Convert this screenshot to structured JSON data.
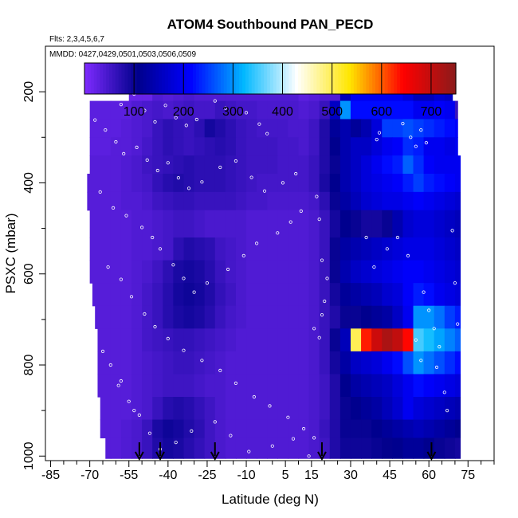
{
  "chart_data": {
    "type": "heatmap",
    "title": "ATOM4 Southbound PAN_PECD",
    "flights_note": "Flts: 2,3,4,5,6,7",
    "dates_note": "MMDD: 0427,0429,0501,0503,0506,0509",
    "xlabel": "Latitude (deg N)",
    "ylabel": "PSXC (mbar)",
    "xlim": [
      -87,
      85
    ],
    "ylim": [
      1010,
      100
    ],
    "x_ticks": [
      -85,
      -70,
      -55,
      -40,
      -25,
      -10,
      5,
      15,
      30,
      45,
      60,
      75
    ],
    "y_ticks": [
      200,
      400,
      600,
      800,
      1000
    ],
    "colorbar": {
      "range": [
        0,
        750
      ],
      "ticks": [
        100,
        200,
        300,
        400,
        500,
        600,
        700
      ],
      "colors": [
        "#7f2bff",
        "#00008b",
        "#0000ff",
        "#00b8ff",
        "#ffffff",
        "#ffe600",
        "#ff0000",
        "#8b1a1a"
      ]
    },
    "lat_columns": [
      -64,
      -60,
      -56,
      -52,
      -48,
      -44,
      -40,
      -36,
      -32,
      -28,
      -24,
      -20,
      -16,
      -12,
      -8,
      -4,
      0,
      4,
      8,
      12,
      16,
      20,
      24,
      28,
      32,
      36,
      40,
      44,
      48,
      52,
      56,
      60,
      64,
      68,
      72
    ],
    "layers": [
      {
        "p_top": 175,
        "p_bot": 220,
        "lat_min": -55,
        "lat_max": 69,
        "values": [
          0,
          0,
          20,
          20,
          20,
          40,
          35,
          40,
          45,
          40,
          40,
          40,
          40,
          40,
          40,
          40,
          40,
          40,
          40,
          30,
          35,
          40,
          40,
          150,
          200,
          200,
          200,
          200,
          200,
          180,
          150,
          150,
          170,
          160,
          0
        ]
      },
      {
        "p_top": 220,
        "p_bot": 260,
        "lat_min": -70,
        "lat_max": 71,
        "values": [
          30,
          30,
          30,
          40,
          45,
          50,
          45,
          50,
          55,
          50,
          50,
          60,
          55,
          50,
          50,
          45,
          45,
          45,
          45,
          40,
          45,
          60,
          160,
          300,
          220,
          220,
          220,
          220,
          220,
          220,
          200,
          200,
          210,
          200,
          60
        ]
      },
      {
        "p_top": 260,
        "p_bot": 300,
        "lat_min": -70,
        "lat_max": 71,
        "values": [
          30,
          30,
          35,
          40,
          45,
          60,
          70,
          65,
          60,
          70,
          90,
          80,
          70,
          60,
          55,
          50,
          50,
          50,
          45,
          45,
          55,
          80,
          120,
          140,
          120,
          140,
          180,
          250,
          250,
          260,
          250,
          240,
          230,
          220,
          210
        ]
      },
      {
        "p_top": 300,
        "p_bot": 340,
        "lat_min": -70,
        "lat_max": 71,
        "values": [
          30,
          35,
          35,
          40,
          50,
          60,
          70,
          65,
          60,
          65,
          70,
          75,
          70,
          60,
          55,
          55,
          55,
          50,
          50,
          45,
          55,
          80,
          110,
          140,
          160,
          160,
          180,
          200,
          210,
          240,
          230,
          200,
          200,
          190,
          200
        ]
      },
      {
        "p_top": 340,
        "p_bot": 380,
        "lat_min": -70,
        "lat_max": 72,
        "values": [
          35,
          35,
          40,
          45,
          55,
          60,
          65,
          70,
          75,
          70,
          70,
          70,
          65,
          60,
          55,
          55,
          55,
          50,
          50,
          50,
          60,
          80,
          100,
          140,
          160,
          180,
          200,
          220,
          230,
          270,
          240,
          210,
          200,
          200,
          200
        ]
      },
      {
        "p_top": 380,
        "p_bot": 420,
        "lat_min": -71,
        "lat_max": 72,
        "values": [
          35,
          35,
          40,
          45,
          50,
          65,
          75,
          80,
          75,
          70,
          70,
          70,
          65,
          60,
          55,
          50,
          50,
          50,
          50,
          50,
          60,
          85,
          110,
          140,
          160,
          180,
          190,
          200,
          210,
          230,
          250,
          230,
          220,
          210,
          200
        ]
      },
      {
        "p_top": 420,
        "p_bot": 460,
        "lat_min": -71,
        "lat_max": 72,
        "values": [
          35,
          35,
          40,
          40,
          45,
          55,
          60,
          65,
          65,
          60,
          60,
          60,
          60,
          55,
          50,
          50,
          45,
          45,
          45,
          45,
          50,
          70,
          100,
          130,
          150,
          170,
          180,
          190,
          190,
          200,
          210,
          200,
          190,
          180,
          170
        ]
      },
      {
        "p_top": 460,
        "p_bot": 520,
        "lat_min": -70,
        "lat_max": 72,
        "values": [
          35,
          35,
          35,
          40,
          40,
          45,
          50,
          55,
          55,
          50,
          45,
          45,
          45,
          45,
          40,
          40,
          40,
          40,
          40,
          40,
          45,
          60,
          90,
          110,
          100,
          90,
          90,
          100,
          140,
          170,
          180,
          180,
          170,
          160,
          150
        ]
      },
      {
        "p_top": 520,
        "p_bot": 570,
        "lat_min": -70,
        "lat_max": 72,
        "values": [
          35,
          35,
          35,
          40,
          40,
          45,
          50,
          70,
          80,
          75,
          70,
          55,
          50,
          45,
          40,
          40,
          40,
          40,
          40,
          40,
          45,
          60,
          100,
          130,
          140,
          150,
          160,
          170,
          180,
          190,
          190,
          190,
          180,
          170,
          160
        ]
      },
      {
        "p_top": 570,
        "p_bot": 620,
        "lat_min": -70,
        "lat_max": 72,
        "values": [
          35,
          35,
          35,
          40,
          45,
          55,
          70,
          85,
          90,
          85,
          75,
          60,
          50,
          45,
          40,
          40,
          40,
          40,
          40,
          40,
          45,
          60,
          100,
          140,
          160,
          170,
          180,
          190,
          200,
          210,
          210,
          200,
          190,
          180,
          170
        ]
      },
      {
        "p_top": 620,
        "p_bot": 670,
        "lat_min": -69,
        "lat_max": 72,
        "values": [
          35,
          35,
          35,
          40,
          50,
          60,
          75,
          90,
          95,
          90,
          80,
          65,
          55,
          45,
          40,
          40,
          40,
          40,
          40,
          40,
          45,
          60,
          90,
          120,
          130,
          140,
          150,
          170,
          180,
          210,
          230,
          220,
          200,
          190,
          180
        ]
      },
      {
        "p_top": 670,
        "p_bot": 720,
        "lat_min": -68,
        "lat_max": 72,
        "values": [
          35,
          35,
          35,
          40,
          50,
          60,
          75,
          85,
          90,
          85,
          75,
          60,
          50,
          45,
          40,
          40,
          40,
          40,
          40,
          40,
          45,
          60,
          80,
          100,
          100,
          110,
          120,
          130,
          160,
          200,
          300,
          300,
          280,
          250,
          230
        ]
      },
      {
        "p_top": 720,
        "p_bot": 770,
        "lat_min": -67,
        "lat_max": 72,
        "values": [
          35,
          35,
          35,
          40,
          50,
          55,
          60,
          65,
          65,
          60,
          55,
          50,
          45,
          40,
          40,
          40,
          40,
          40,
          40,
          40,
          45,
          60,
          100,
          150,
          500,
          630,
          690,
          720,
          700,
          640,
          350,
          330,
          310,
          290,
          270
        ]
      },
      {
        "p_top": 770,
        "p_bot": 820,
        "lat_min": -67,
        "lat_max": 72,
        "values": [
          35,
          35,
          35,
          40,
          45,
          50,
          55,
          60,
          60,
          55,
          50,
          45,
          40,
          40,
          40,
          40,
          40,
          40,
          40,
          40,
          45,
          60,
          90,
          130,
          160,
          170,
          180,
          200,
          220,
          260,
          300,
          280,
          260,
          240,
          220
        ]
      },
      {
        "p_top": 820,
        "p_bot": 870,
        "lat_min": -67,
        "lat_max": 72,
        "values": [
          35,
          35,
          35,
          40,
          45,
          50,
          55,
          55,
          55,
          50,
          45,
          45,
          40,
          40,
          40,
          40,
          40,
          40,
          40,
          40,
          45,
          55,
          80,
          110,
          130,
          140,
          150,
          160,
          180,
          200,
          220,
          210,
          200,
          190,
          180
        ]
      },
      {
        "p_top": 870,
        "p_bot": 920,
        "lat_min": -66,
        "lat_max": 72,
        "values": [
          35,
          35,
          35,
          40,
          45,
          60,
          75,
          80,
          75,
          65,
          55,
          45,
          40,
          40,
          40,
          40,
          40,
          40,
          40,
          40,
          45,
          55,
          80,
          100,
          110,
          120,
          130,
          150,
          170,
          200,
          180,
          170,
          160,
          150,
          140
        ]
      },
      {
        "p_top": 920,
        "p_bot": 960,
        "lat_min": -66,
        "lat_max": 72,
        "values": [
          35,
          35,
          40,
          45,
          60,
          85,
          95,
          90,
          80,
          70,
          55,
          45,
          40,
          40,
          40,
          40,
          40,
          40,
          40,
          40,
          45,
          60,
          80,
          100,
          100,
          100,
          110,
          120,
          130,
          140,
          150,
          140,
          130,
          120,
          110
        ]
      },
      {
        "p_top": 960,
        "p_bot": 1005,
        "lat_min": -64,
        "lat_max": 72,
        "values": [
          35,
          35,
          40,
          45,
          60,
          80,
          90,
          85,
          75,
          65,
          55,
          45,
          40,
          40,
          40,
          40,
          40,
          40,
          40,
          40,
          45,
          55,
          80,
          95,
          95,
          95,
          100,
          105,
          110,
          120,
          120,
          110,
          100,
          95,
          90
        ]
      }
    ],
    "sample_points": [
      [
        -62,
        212
      ],
      [
        -58,
        228
      ],
      [
        -53,
        205
      ],
      [
        -49,
        241
      ],
      [
        -45,
        266
      ],
      [
        -41,
        230
      ],
      [
        -37,
        257
      ],
      [
        -33,
        274
      ],
      [
        -29,
        261
      ],
      [
        -22,
        220
      ],
      [
        -18,
        236
      ],
      [
        -10,
        246
      ],
      [
        -5,
        271
      ],
      [
        -2,
        292
      ],
      [
        -68,
        262
      ],
      [
        -64,
        284
      ],
      [
        -60,
        310
      ],
      [
        -57,
        336
      ],
      [
        -52,
        322
      ],
      [
        -48,
        350
      ],
      [
        -44,
        373
      ],
      [
        -40,
        356
      ],
      [
        -36,
        389
      ],
      [
        -32,
        412
      ],
      [
        -27,
        398
      ],
      [
        -20,
        366
      ],
      [
        -14,
        352
      ],
      [
        -8,
        388
      ],
      [
        -3,
        418
      ],
      [
        4,
        400
      ],
      [
        9,
        380
      ],
      [
        -66,
        420
      ],
      [
        -61,
        455
      ],
      [
        -56,
        472
      ],
      [
        -50,
        498
      ],
      [
        -46,
        520
      ],
      [
        -43,
        545
      ],
      [
        -38,
        580
      ],
      [
        -34,
        610
      ],
      [
        -30,
        640
      ],
      [
        -25,
        620
      ],
      [
        -17,
        590
      ],
      [
        -11,
        560
      ],
      [
        -6,
        533
      ],
      [
        2,
        510
      ],
      [
        7,
        486
      ],
      [
        11,
        462
      ],
      [
        -63,
        585
      ],
      [
        -58,
        612
      ],
      [
        -54,
        650
      ],
      [
        -49,
        688
      ],
      [
        -45,
        716
      ],
      [
        -40,
        742
      ],
      [
        -34,
        768
      ],
      [
        -27,
        790
      ],
      [
        -20,
        812
      ],
      [
        -14,
        840
      ],
      [
        -7,
        870
      ],
      [
        -1,
        890
      ],
      [
        6,
        915
      ],
      [
        12,
        940
      ],
      [
        16,
        960
      ],
      [
        -59,
        845
      ],
      [
        -55,
        880
      ],
      [
        -51,
        910
      ],
      [
        -47,
        950
      ],
      [
        -43,
        985
      ],
      [
        -37,
        970
      ],
      [
        -31,
        945
      ],
      [
        -22,
        925
      ],
      [
        -16,
        955
      ],
      [
        -9,
        990
      ],
      [
        0,
        978
      ],
      [
        8,
        962
      ],
      [
        14,
        1000
      ],
      [
        -65,
        770
      ],
      [
        -62,
        800
      ],
      [
        -58,
        835
      ],
      [
        -53,
        900
      ],
      [
        16,
        720
      ],
      [
        18,
        740
      ],
      [
        19,
        690
      ],
      [
        20,
        660
      ],
      [
        21,
        610
      ],
      [
        19,
        570
      ],
      [
        18,
        480
      ],
      [
        17,
        430
      ],
      [
        40,
        305
      ],
      [
        41,
        290
      ],
      [
        50,
        270
      ],
      [
        53,
        300
      ],
      [
        55,
        320
      ],
      [
        57,
        284
      ],
      [
        59,
        312
      ],
      [
        58,
        640
      ],
      [
        60,
        680
      ],
      [
        62,
        720
      ],
      [
        64,
        760
      ],
      [
        63,
        805
      ],
      [
        66,
        860
      ],
      [
        67,
        900
      ],
      [
        55,
        745
      ],
      [
        57,
        790
      ],
      [
        52,
        560
      ],
      [
        48,
        520
      ],
      [
        44,
        545
      ],
      [
        39,
        585
      ],
      [
        36,
        520
      ],
      [
        69,
        505
      ],
      [
        70,
        620
      ],
      [
        71,
        710
      ]
    ],
    "flight_markers": [
      -51,
      -43,
      -22,
      19,
      61
    ]
  }
}
